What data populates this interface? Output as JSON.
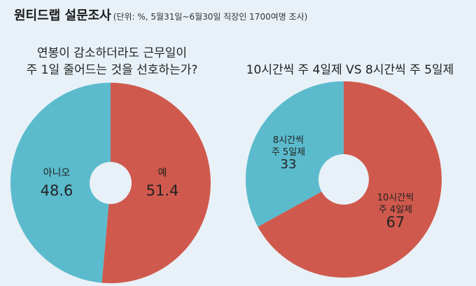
{
  "header": {
    "title": "원티드랩 설문조사",
    "subtitle": "(단위: %, 5월31일~6월30일 직장인 1700여명 조사)"
  },
  "colors": {
    "red": "#d0594d",
    "blue": "#5bbbcd",
    "hole": "#e8f1f7"
  },
  "chart_data": [
    {
      "type": "pie",
      "title": [
        "연봉이 감소하더라도 근무일이",
        "주 1일 줄어드는 것을 선호하는가?"
      ],
      "slices": [
        {
          "label": [
            "예"
          ],
          "value": 51.4,
          "display": "51.4",
          "color": "#d0594d"
        },
        {
          "label": [
            "아니오"
          ],
          "value": 48.6,
          "display": "48.6",
          "color": "#5bbbcd"
        }
      ]
    },
    {
      "type": "pie",
      "title": [
        "10시간씩 주 4일제 VS 8시간씩 주 5일제"
      ],
      "slices": [
        {
          "label": [
            "10시간씩",
            "주 4일제"
          ],
          "value": 67,
          "display": "67",
          "color": "#d0594d"
        },
        {
          "label": [
            "8시간씩",
            "주 5일제"
          ],
          "value": 33,
          "display": "33",
          "color": "#5bbbcd"
        }
      ]
    }
  ]
}
